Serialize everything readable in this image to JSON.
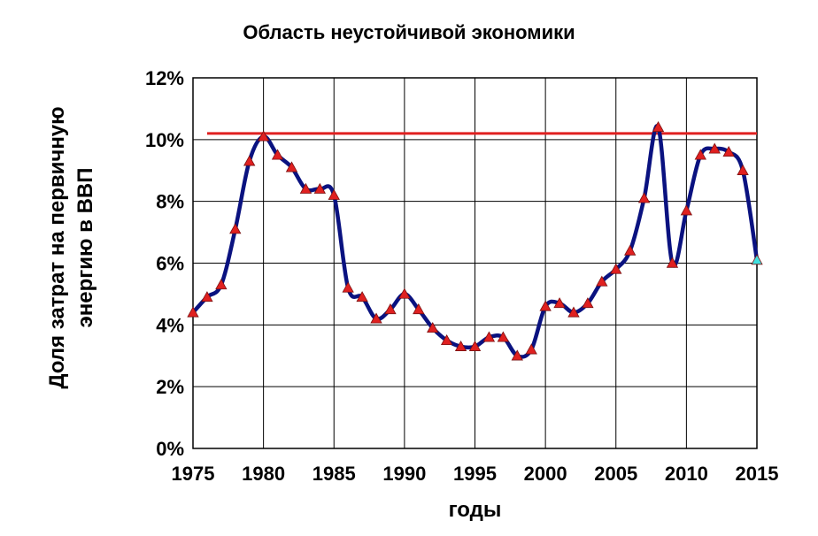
{
  "chart_data": {
    "type": "line",
    "title": "Область неустойчивой экономики",
    "xlabel": "годы",
    "ylabel_lines": [
      "Доля затрат на первичную",
      "энергию в ВВП"
    ],
    "xlim": [
      1975,
      2015
    ],
    "ylim": [
      0,
      12
    ],
    "x_ticks": [
      1975,
      1980,
      1985,
      1990,
      1995,
      2000,
      2005,
      2010,
      2015
    ],
    "y_ticks": [
      0,
      2,
      4,
      6,
      8,
      10,
      12
    ],
    "y_tick_labels": [
      "0%",
      "2%",
      "4%",
      "6%",
      "8%",
      "10%",
      "12%"
    ],
    "grid": true,
    "legend": "none",
    "threshold": {
      "y": 10.2,
      "x_start": 1976,
      "x_end": 2015,
      "color": "#e02020"
    },
    "series": [
      {
        "color": "#0a1280",
        "marker_color": "#e02020",
        "last_marker_color": "#40e0e0",
        "x": [
          1975,
          1976,
          1977,
          1978,
          1979,
          1980,
          1981,
          1982,
          1983,
          1984,
          1985,
          1986,
          1987,
          1988,
          1989,
          1990,
          1991,
          1992,
          1993,
          1994,
          1995,
          1996,
          1997,
          1998,
          1999,
          2000,
          2001,
          2002,
          2003,
          2004,
          2005,
          2006,
          2007,
          2008,
          2009,
          2010,
          2011,
          2012,
          2013,
          2014,
          2015
        ],
        "y": [
          4.4,
          4.9,
          5.3,
          7.1,
          9.3,
          10.1,
          9.5,
          9.1,
          8.4,
          8.4,
          8.2,
          5.2,
          4.9,
          4.2,
          4.5,
          5.0,
          4.5,
          3.9,
          3.5,
          3.3,
          3.3,
          3.6,
          3.6,
          3.0,
          3.2,
          4.6,
          4.7,
          4.4,
          4.7,
          5.4,
          5.8,
          6.4,
          8.1,
          10.4,
          6.0,
          7.7,
          9.5,
          9.7,
          9.6,
          9.0,
          6.1
        ]
      }
    ]
  }
}
